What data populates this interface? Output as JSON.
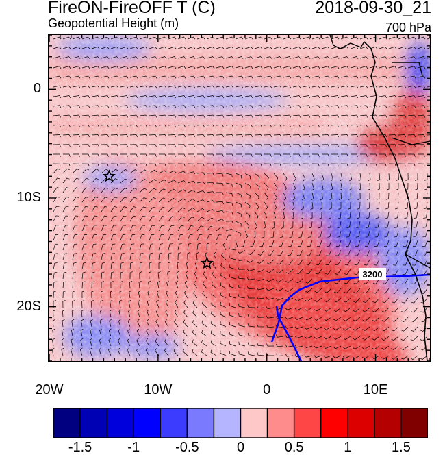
{
  "title": {
    "main": "FireON-FireOFF T (C)",
    "sub": "Geopotential Height (m)",
    "date": "2018-09-30_21",
    "level": "700 hPa"
  },
  "map": {
    "lon_range": [
      -20,
      15
    ],
    "lat_range": [
      -25,
      5
    ],
    "x_ticks": [
      {
        "value": -20,
        "label": "20W"
      },
      {
        "value": -10,
        "label": "10W"
      },
      {
        "value": 0,
        "label": "0"
      },
      {
        "value": 10,
        "label": "10E"
      }
    ],
    "y_ticks": [
      {
        "value": 0,
        "label": "0"
      },
      {
        "value": -10,
        "label": "10S"
      },
      {
        "value": -20,
        "label": "20S"
      }
    ],
    "contour_label": "3200",
    "markers": [
      {
        "name": "star-marker-1",
        "lon": -14.5,
        "lat": -8.0
      },
      {
        "name": "star-marker-2",
        "lon": -5.5,
        "lat": -16.0
      }
    ]
  },
  "colorbar": {
    "colors": [
      "#000080",
      "#0000b4",
      "#0000dc",
      "#0000ff",
      "#3c3cff",
      "#7a7aff",
      "#b4b4ff",
      "#ffc8c8",
      "#ff8c8c",
      "#ff4646",
      "#ff0000",
      "#dc0000",
      "#b40000",
      "#800000"
    ],
    "labels": [
      {
        "pos": 1,
        "text": "-1.5"
      },
      {
        "pos": 3,
        "text": "-1"
      },
      {
        "pos": 5,
        "text": "-0.5"
      },
      {
        "pos": 7,
        "text": "0"
      },
      {
        "pos": 9,
        "text": "0.5"
      },
      {
        "pos": 11,
        "text": "1"
      },
      {
        "pos": 13,
        "text": "1.5"
      }
    ]
  }
}
